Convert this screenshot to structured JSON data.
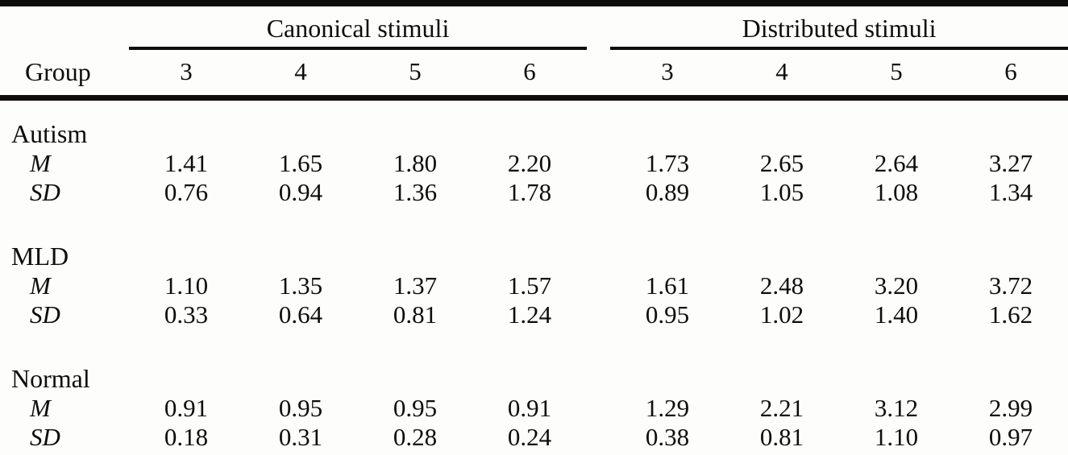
{
  "table": {
    "header": {
      "group_label": "Group",
      "spans": [
        {
          "label": "Canonical stimuli",
          "columns": [
            "3",
            "4",
            "5",
            "6"
          ]
        },
        {
          "label": "Distributed stimuli",
          "columns": [
            "3",
            "4",
            "5",
            "6"
          ]
        }
      ]
    },
    "groups": [
      {
        "name": "Autism",
        "rows": [
          {
            "label": "M",
            "canonical": [
              "1.41",
              "1.65",
              "1.80",
              "2.20"
            ],
            "distributed": [
              "1.73",
              "2.65",
              "2.64",
              "3.27"
            ]
          },
          {
            "label": "SD",
            "canonical": [
              "0.76",
              "0.94",
              "1.36",
              "1.78"
            ],
            "distributed": [
              "0.89",
              "1.05",
              "1.08",
              "1.34"
            ]
          }
        ]
      },
      {
        "name": "MLD",
        "rows": [
          {
            "label": "M",
            "canonical": [
              "1.10",
              "1.35",
              "1.37",
              "1.57"
            ],
            "distributed": [
              "1.61",
              "2.48",
              "3.20",
              "3.72"
            ]
          },
          {
            "label": "SD",
            "canonical": [
              "0.33",
              "0.64",
              "0.81",
              "1.24"
            ],
            "distributed": [
              "0.95",
              "1.02",
              "1.40",
              "1.62"
            ]
          }
        ]
      },
      {
        "name": "Normal",
        "rows": [
          {
            "label": "M",
            "canonical": [
              "0.91",
              "0.95",
              "0.95",
              "0.91"
            ],
            "distributed": [
              "1.29",
              "2.21",
              "3.12",
              "2.99"
            ]
          },
          {
            "label": "SD",
            "canonical": [
              "0.18",
              "0.31",
              "0.28",
              "0.24"
            ],
            "distributed": [
              "0.38",
              "0.81",
              "1.10",
              "0.97"
            ]
          }
        ]
      }
    ]
  }
}
